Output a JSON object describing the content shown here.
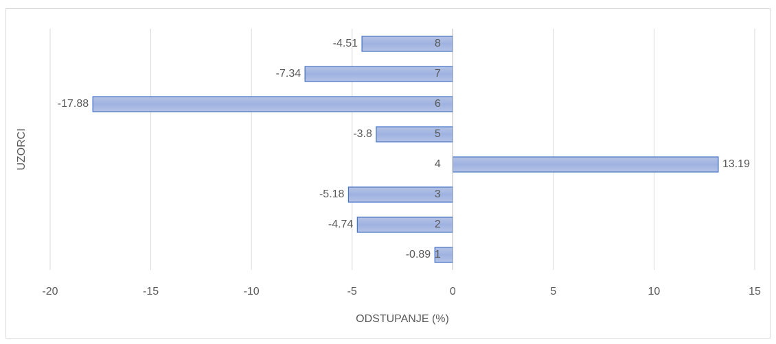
{
  "chart_data": {
    "type": "hbar",
    "x_label": "ODSTUPANJE (%)",
    "y_label": "UZORCI",
    "categories": [
      "1",
      "2",
      "3",
      "4",
      "5",
      "6",
      "7",
      "8"
    ],
    "values": [
      -0.89,
      -4.74,
      -5.18,
      13.19,
      -3.8,
      -17.88,
      -7.34,
      -4.51
    ],
    "color": "#4472c4",
    "xlim": [
      -20,
      15
    ],
    "xticks": [
      -20,
      -15,
      -10,
      -5,
      0,
      5,
      10,
      15
    ],
    "grid": true
  }
}
